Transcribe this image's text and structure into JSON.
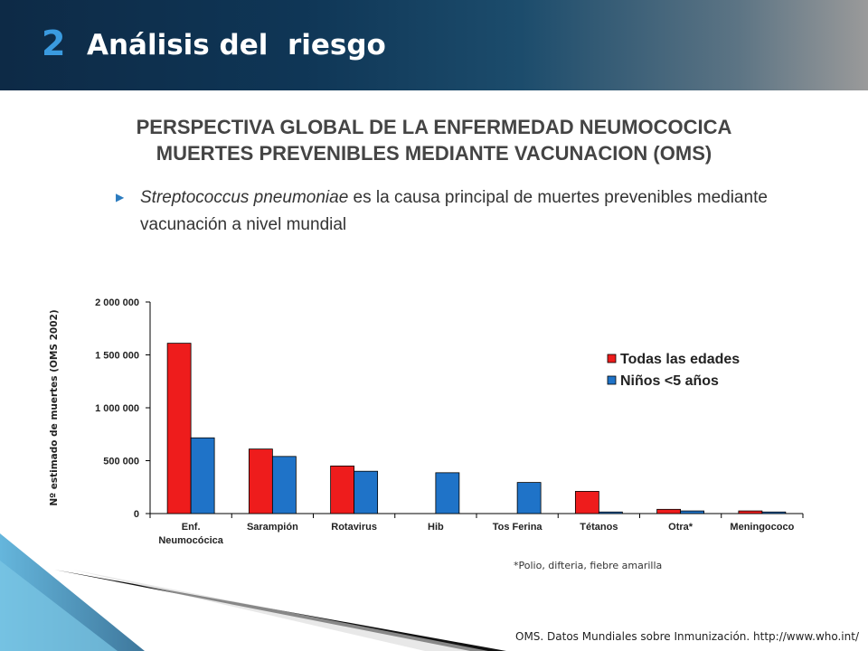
{
  "header": {
    "number": "2",
    "title": "Análisis del  riesgo"
  },
  "slide": {
    "title_line1": "PERSPECTIVA GLOBAL DE LA ENFERMEDAD NEUMOCOCICA",
    "title_line2": "MUERTES PREVENIBLES MEDIANTE VACUNACION (OMS)",
    "bullet_italic": "Streptococcus pneumoniae",
    "bullet_text": " es la causa principal de muertes prevenibles mediante vacunación a nivel mundial",
    "footnote": "*Polio, difteria, fiebre amarilla",
    "source": "OMS. Datos Mundiales sobre Inmunización. http://www.who.int/"
  },
  "colors": {
    "series_red": "#ee1c1c",
    "series_blue": "#1f73c8",
    "title_text": "#444444",
    "bullet_arrow": "#2b7bbf"
  },
  "chart_data": {
    "type": "bar",
    "categories": [
      [
        "Enf.",
        "Neumocócica"
      ],
      [
        "Sarampión"
      ],
      [
        "Rotavirus"
      ],
      [
        "Hib"
      ],
      [
        "Tos Ferina"
      ],
      [
        "Tétanos"
      ],
      [
        "Otra*"
      ],
      [
        "Meningococo"
      ]
    ],
    "series": [
      {
        "name": "Todas las edades",
        "color": "#ee1c1c",
        "values": [
          1610000,
          610000,
          450000,
          0,
          0,
          210000,
          40000,
          25000
        ]
      },
      {
        "name": "Niños <5 años",
        "color": "#1f73c8",
        "values": [
          716000,
          540000,
          400000,
          386000,
          294000,
          15000,
          25000,
          15000
        ]
      }
    ],
    "ylabel": "Nº estimado de muertes (OMS 2002)",
    "yticks": [
      0,
      500000,
      1000000,
      1500000,
      2000000
    ],
    "ytick_labels": [
      "0",
      "500 000",
      "1 000 000",
      "1 500 000",
      "2 000 000"
    ],
    "ylim": [
      0,
      2000000
    ],
    "legend_position": "right"
  }
}
